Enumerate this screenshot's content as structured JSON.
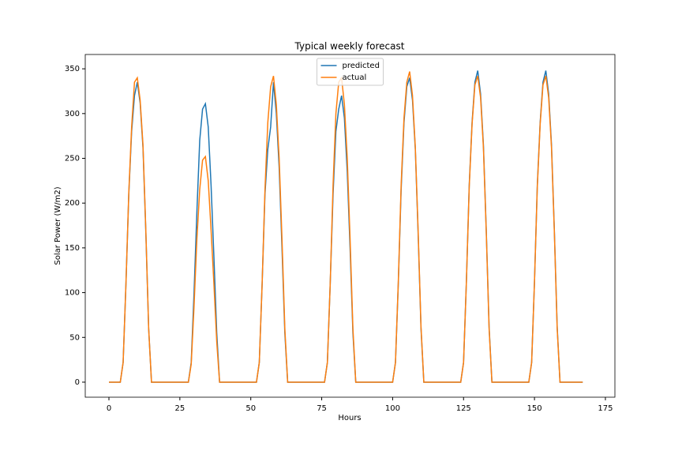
{
  "chart_data": {
    "type": "line",
    "title": "Typical weekly forecast",
    "xlabel": "Hours",
    "ylabel": "Solar Power (W/m2)",
    "xlim": [
      -8.35,
      178.35
    ],
    "ylim": [
      -16.8,
      366
    ],
    "xticks": [
      0,
      25,
      50,
      75,
      100,
      125,
      150,
      175
    ],
    "yticks": [
      0,
      50,
      100,
      150,
      200,
      250,
      300,
      350
    ],
    "legend": "upper center",
    "grid": false,
    "x": [
      0,
      1,
      2,
      3,
      4,
      5,
      6,
      7,
      8,
      9,
      10,
      11,
      12,
      13,
      14,
      15,
      16,
      17,
      18,
      19,
      20,
      21,
      22,
      23,
      24,
      25,
      26,
      27,
      28,
      29,
      30,
      31,
      32,
      33,
      34,
      35,
      36,
      37,
      38,
      39,
      40,
      41,
      42,
      43,
      44,
      45,
      46,
      47,
      48,
      49,
      50,
      51,
      52,
      53,
      54,
      55,
      56,
      57,
      58,
      59,
      60,
      61,
      62,
      63,
      64,
      65,
      66,
      67,
      68,
      69,
      70,
      71,
      72,
      73,
      74,
      75,
      76,
      77,
      78,
      79,
      80,
      81,
      82,
      83,
      84,
      85,
      86,
      87,
      88,
      89,
      90,
      91,
      92,
      93,
      94,
      95,
      96,
      97,
      98,
      99,
      100,
      101,
      102,
      103,
      104,
      105,
      106,
      107,
      108,
      109,
      110,
      111,
      112,
      113,
      114,
      115,
      116,
      117,
      118,
      119,
      120,
      121,
      122,
      123,
      124,
      125,
      126,
      127,
      128,
      129,
      130,
      131,
      132,
      133,
      134,
      135,
      136,
      137,
      138,
      139,
      140,
      141,
      142,
      143,
      144,
      145,
      146,
      147,
      148,
      149,
      150,
      151,
      152,
      153,
      154,
      155,
      156,
      157,
      158,
      159,
      160,
      161,
      162,
      163,
      164,
      165,
      166,
      167
    ],
    "series": [
      {
        "name": "predicted",
        "color": "#1f77b4",
        "values": [
          0,
          0,
          0,
          0,
          0,
          22,
          110,
          210,
          280,
          320,
          335,
          312,
          262,
          168,
          60,
          0,
          0,
          0,
          0,
          0,
          0,
          0,
          0,
          0,
          0,
          0,
          0,
          0,
          0,
          22,
          100,
          190,
          270,
          305,
          311,
          285,
          220,
          140,
          55,
          0,
          0,
          0,
          0,
          0,
          0,
          0,
          0,
          0,
          0,
          0,
          0,
          0,
          0,
          22,
          110,
          210,
          260,
          285,
          335,
          300,
          240,
          150,
          55,
          0,
          0,
          0,
          0,
          0,
          0,
          0,
          0,
          0,
          0,
          0,
          0,
          0,
          0,
          22,
          110,
          210,
          280,
          305,
          320,
          295,
          235,
          150,
          55,
          0,
          0,
          0,
          0,
          0,
          0,
          0,
          0,
          0,
          0,
          0,
          0,
          0,
          0,
          22,
          110,
          215,
          290,
          330,
          340,
          315,
          260,
          165,
          60,
          0,
          0,
          0,
          0,
          0,
          0,
          0,
          0,
          0,
          0,
          0,
          0,
          0,
          0,
          22,
          112,
          220,
          290,
          335,
          348,
          322,
          265,
          170,
          62,
          0,
          0,
          0,
          0,
          0,
          0,
          0,
          0,
          0,
          0,
          0,
          0,
          0,
          0,
          22,
          112,
          220,
          290,
          335,
          348,
          322,
          265,
          170,
          62,
          0,
          0,
          0,
          0,
          0,
          0,
          0,
          0,
          0
        ]
      },
      {
        "name": "actual",
        "color": "#ff7f0e",
        "values": [
          0,
          0,
          0,
          0,
          0,
          22,
          110,
          212,
          285,
          335,
          340,
          315,
          265,
          170,
          60,
          0,
          0,
          0,
          0,
          0,
          0,
          0,
          0,
          0,
          0,
          0,
          0,
          0,
          0,
          20,
          85,
          160,
          215,
          248,
          252,
          225,
          170,
          110,
          45,
          0,
          0,
          0,
          0,
          0,
          0,
          0,
          0,
          0,
          0,
          0,
          0,
          0,
          0,
          22,
          110,
          215,
          290,
          330,
          342,
          310,
          250,
          160,
          60,
          0,
          0,
          0,
          0,
          0,
          0,
          0,
          0,
          0,
          0,
          0,
          0,
          0,
          0,
          22,
          110,
          220,
          300,
          335,
          340,
          310,
          250,
          160,
          60,
          0,
          0,
          0,
          0,
          0,
          0,
          0,
          0,
          0,
          0,
          0,
          0,
          0,
          0,
          22,
          112,
          220,
          295,
          335,
          347,
          320,
          262,
          168,
          62,
          0,
          0,
          0,
          0,
          0,
          0,
          0,
          0,
          0,
          0,
          0,
          0,
          0,
          0,
          22,
          112,
          218,
          288,
          332,
          342,
          318,
          262,
          168,
          60,
          0,
          0,
          0,
          0,
          0,
          0,
          0,
          0,
          0,
          0,
          0,
          0,
          0,
          0,
          22,
          112,
          218,
          288,
          332,
          342,
          318,
          262,
          168,
          60,
          0,
          0,
          0,
          0,
          0,
          0,
          0,
          0,
          0
        ]
      }
    ]
  }
}
